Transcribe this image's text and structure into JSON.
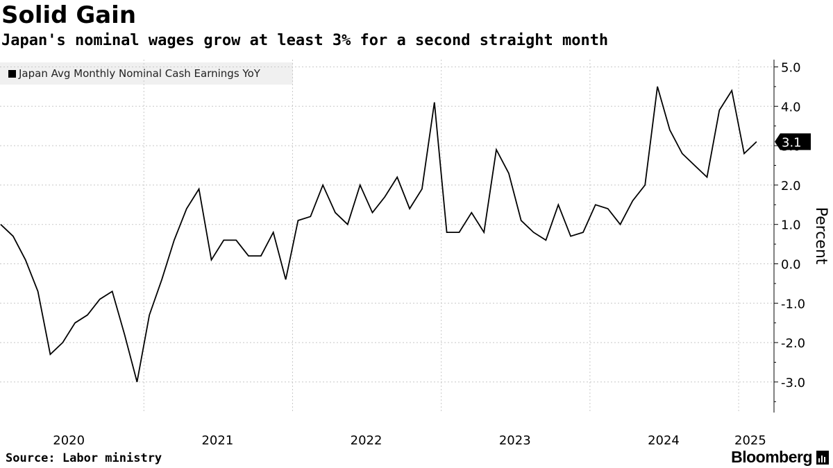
{
  "header": {
    "title": "Solid Gain",
    "subtitle": "Japan's nominal wages grow at least 3% for a second straight month"
  },
  "footer": {
    "source": "Source: Labor ministry",
    "brand": "Bloomberg"
  },
  "chart_data": {
    "type": "line",
    "title": "Solid Gain",
    "subtitle": "Japan's nominal wages grow at least 3% for a second straight month",
    "series": [
      {
        "name": "Japan Avg Monthly Nominal Cash Earnings YoY",
        "color": "#000000",
        "x_start": "2020-01",
        "values": [
          1.0,
          0.7,
          0.1,
          -0.7,
          -2.3,
          -2.0,
          -1.5,
          -1.3,
          -0.9,
          -0.7,
          -1.8,
          -3.0,
          -1.3,
          -0.4,
          0.6,
          1.4,
          1.9,
          0.1,
          0.6,
          0.6,
          0.2,
          0.2,
          0.8,
          -0.4,
          1.1,
          1.2,
          2.0,
          1.3,
          1.0,
          2.0,
          1.3,
          1.7,
          2.2,
          1.4,
          1.9,
          4.1,
          0.8,
          0.8,
          1.3,
          0.8,
          2.9,
          2.3,
          1.1,
          0.8,
          0.6,
          1.5,
          0.7,
          0.8,
          1.5,
          1.4,
          1.0,
          1.6,
          2.0,
          4.5,
          3.4,
          2.8,
          2.5,
          2.2,
          3.9,
          4.4,
          2.8,
          3.1
        ]
      }
    ],
    "last_value_label": "3.1",
    "x_ticks": [
      "2020",
      "2021",
      "2022",
      "2023",
      "2024",
      "2025"
    ],
    "y_ticks": [
      5.0,
      4.0,
      3.0,
      2.0,
      1.0,
      0.0,
      -1.0,
      -2.0,
      -3.0
    ],
    "y_tick_labels": [
      "5.0",
      "4.0",
      "3.0",
      "2.0",
      "1.0",
      "0.0",
      "-1.0",
      "-2.0",
      "-3.0"
    ],
    "ylim": [
      -3.7,
      5.3
    ],
    "ylabel": "Percent",
    "xlabel": "",
    "y_axis_position": "right",
    "grid": true,
    "legend_position": "top-left"
  }
}
